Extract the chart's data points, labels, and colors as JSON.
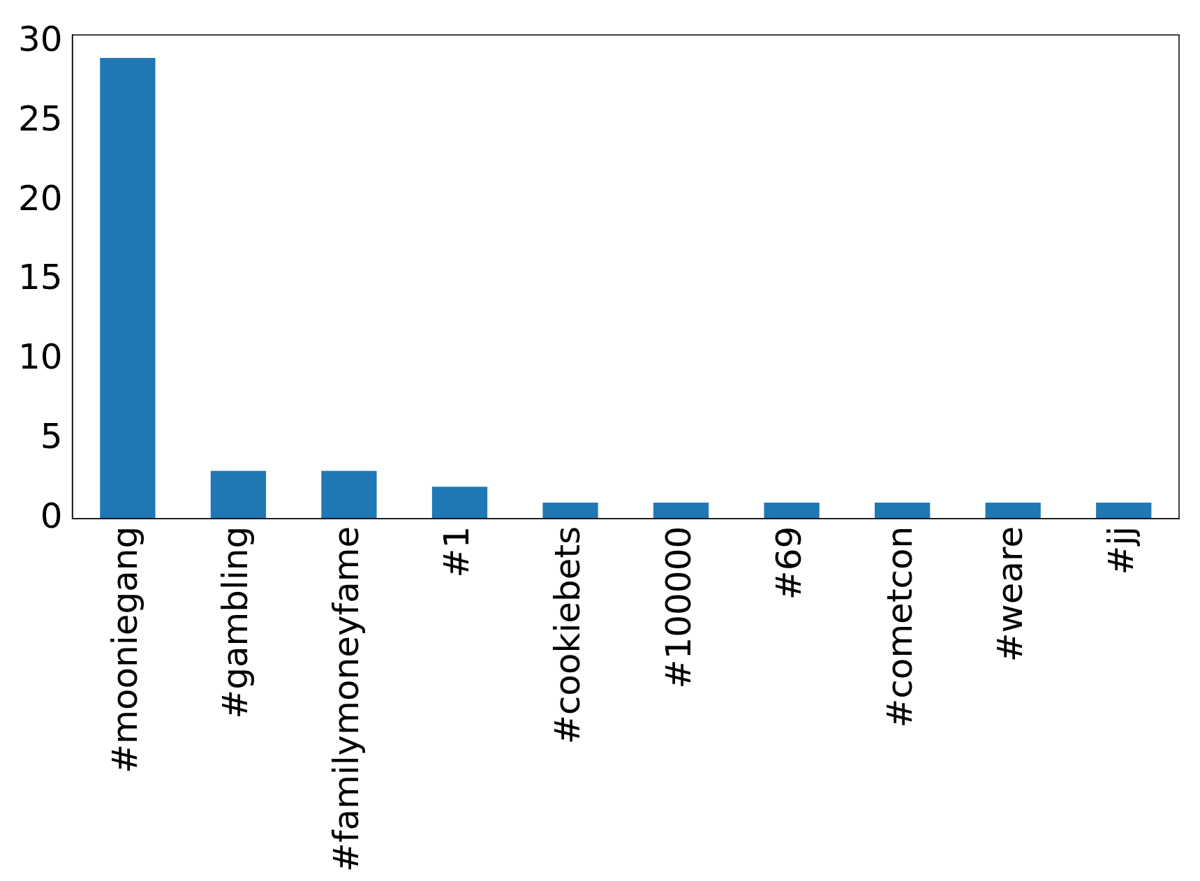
{
  "chart_data": {
    "type": "bar",
    "categories": [
      "#mooniegang",
      "#gambling",
      "#familymoneyfame",
      "#1",
      "#cookiebets",
      "#100000",
      "#69",
      "#cometcon",
      "#weare",
      "#jj"
    ],
    "values": [
      29,
      3,
      3,
      2,
      1,
      1,
      1,
      1,
      1,
      1
    ],
    "color": "#1f77b4",
    "ylim": [
      0,
      30.45
    ],
    "yticks": [
      0,
      5,
      10,
      15,
      20,
      25,
      30
    ],
    "grid": false,
    "legend": false
  }
}
